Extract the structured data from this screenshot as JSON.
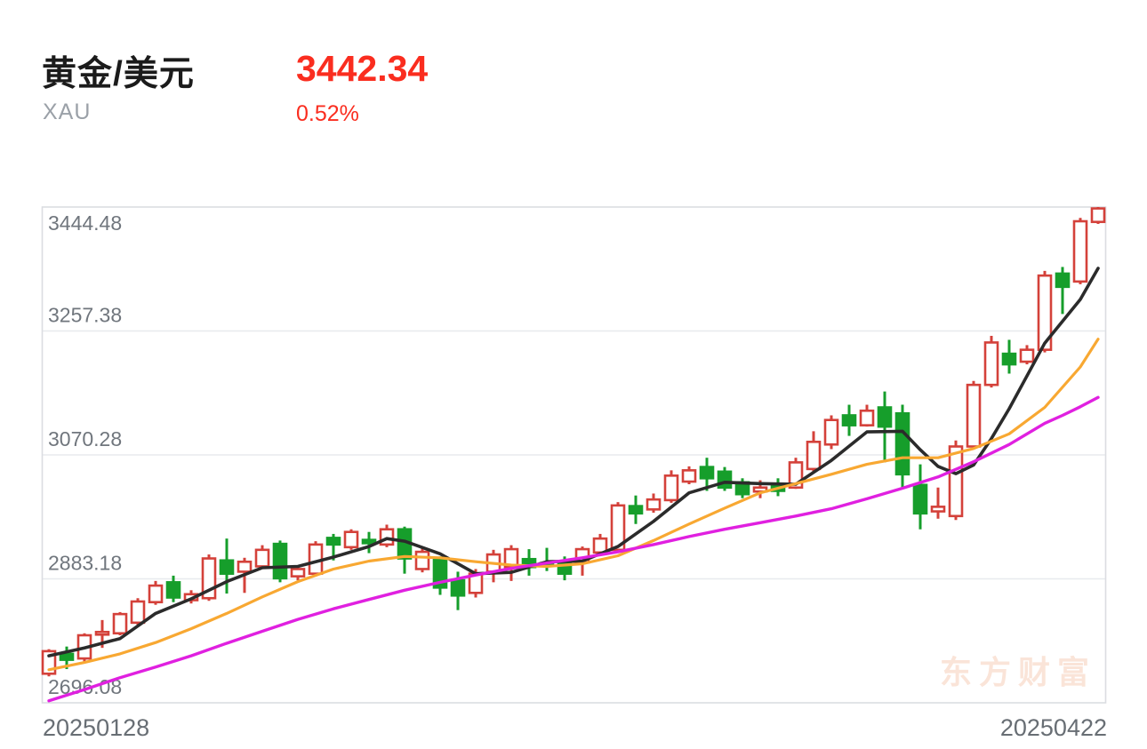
{
  "header": {
    "title": "黄金/美元",
    "symbol": "XAU",
    "price": "3442.34",
    "change_percent": "0.52%"
  },
  "watermark": "东方财富",
  "colors": {
    "accent_red_text": "#fa2d1f",
    "candle_up": "#d4413a",
    "candle_down": "#169e2b",
    "ma_fast": "#2b2b2b",
    "ma_mid": "#f8a832",
    "ma_slow": "#e020e0",
    "grid": "#e8eaee",
    "border": "#dbdde1",
    "y_label": "#70767d",
    "x_label": "#686e74",
    "watermark": "#fae4d8",
    "title_text": "#1b1b1b",
    "symbol_text": "#9ba1a8"
  },
  "chart_data": {
    "type": "candlestick",
    "title": "黄金/美元 XAU daily candlestick chart",
    "grid": true,
    "legend_position": "none",
    "y_axis": {
      "labels": [
        "3444.48",
        "3257.38",
        "3070.28",
        "2883.18",
        "2696.08"
      ],
      "values": [
        3444.48,
        3257.38,
        3070.28,
        2883.18,
        2696.08
      ],
      "max": 3444.48,
      "min": 2696.08
    },
    "x_axis": {
      "start_label": "20250128",
      "end_label": "20250422"
    },
    "candles_format": [
      "open",
      "high",
      "low",
      "close"
    ],
    "candles": [
      [
        2740,
        2777,
        2736,
        2774
      ],
      [
        2770,
        2781,
        2747,
        2761
      ],
      [
        2763,
        2801,
        2757,
        2798
      ],
      [
        2799,
        2821,
        2779,
        2803
      ],
      [
        2801,
        2833,
        2798,
        2830
      ],
      [
        2817,
        2854,
        2814,
        2849
      ],
      [
        2848,
        2880,
        2844,
        2873
      ],
      [
        2878,
        2888,
        2848,
        2855
      ],
      [
        2851,
        2866,
        2846,
        2860
      ],
      [
        2854,
        2920,
        2850,
        2914
      ],
      [
        2911,
        2944,
        2861,
        2891
      ],
      [
        2894,
        2915,
        2862,
        2909
      ],
      [
        2902,
        2934,
        2898,
        2927
      ],
      [
        2936,
        2941,
        2878,
        2884
      ],
      [
        2887,
        2903,
        2881,
        2898
      ],
      [
        2891,
        2940,
        2887,
        2935
      ],
      [
        2945,
        2951,
        2911,
        2935
      ],
      [
        2931,
        2958,
        2927,
        2954
      ],
      [
        2942,
        2954,
        2922,
        2937
      ],
      [
        2935,
        2965,
        2931,
        2958
      ],
      [
        2958,
        2962,
        2891,
        2914
      ],
      [
        2898,
        2929,
        2893,
        2924
      ],
      [
        2913,
        2917,
        2859,
        2870
      ],
      [
        2881,
        2894,
        2836,
        2858
      ],
      [
        2862,
        2898,
        2855,
        2891
      ],
      [
        2894,
        2927,
        2878,
        2920
      ],
      [
        2901,
        2934,
        2880,
        2928
      ],
      [
        2913,
        2928,
        2888,
        2901
      ],
      [
        2907,
        2930,
        2895,
        2903
      ],
      [
        2908,
        2917,
        2881,
        2891
      ],
      [
        2908,
        2932,
        2888,
        2928
      ],
      [
        2923,
        2951,
        2919,
        2944
      ],
      [
        2927,
        2999,
        2923,
        2994
      ],
      [
        2993,
        3009,
        2966,
        2982
      ],
      [
        2988,
        3012,
        2983,
        3003
      ],
      [
        3002,
        3047,
        2998,
        3039
      ],
      [
        3030,
        3053,
        3026,
        3047
      ],
      [
        3052,
        3066,
        3016,
        3035
      ],
      [
        3045,
        3052,
        3016,
        3021
      ],
      [
        3029,
        3035,
        3005,
        3011
      ],
      [
        3015,
        3032,
        3005,
        3021
      ],
      [
        3025,
        3035,
        3008,
        3016
      ],
      [
        3021,
        3066,
        3019,
        3059
      ],
      [
        3049,
        3106,
        3045,
        3090
      ],
      [
        3086,
        3130,
        3079,
        3123
      ],
      [
        3130,
        3146,
        3099,
        3115
      ],
      [
        3115,
        3146,
        3113,
        3137
      ],
      [
        3142,
        3166,
        3059,
        3113
      ],
      [
        3133,
        3146,
        3019,
        3041
      ],
      [
        3025,
        3056,
        2958,
        2982
      ],
      [
        2985,
        3021,
        2974,
        2992
      ],
      [
        2978,
        3092,
        2972,
        3083
      ],
      [
        3083,
        3182,
        3079,
        3176
      ],
      [
        3176,
        3250,
        3172,
        3240
      ],
      [
        3223,
        3244,
        3193,
        3207
      ],
      [
        3211,
        3236,
        3207,
        3229
      ],
      [
        3229,
        3348,
        3225,
        3341
      ],
      [
        3344,
        3354,
        3283,
        3324
      ],
      [
        3332,
        3428,
        3328,
        3423
      ],
      [
        3422,
        3444.48,
        3419,
        3442.34
      ]
    ],
    "moving_averages": [
      {
        "name": "ma-fast-black",
        "color": "#2b2b2b",
        "stroke_width": 3.6,
        "points": [
          [
            0,
            2767
          ],
          [
            2,
            2779
          ],
          [
            4,
            2793
          ],
          [
            6,
            2831
          ],
          [
            8,
            2853
          ],
          [
            10,
            2879
          ],
          [
            12,
            2900
          ],
          [
            14,
            2902
          ],
          [
            16,
            2916
          ],
          [
            18,
            2932
          ],
          [
            19,
            2944
          ],
          [
            20,
            2940
          ],
          [
            22,
            2921
          ],
          [
            24,
            2891
          ],
          [
            26,
            2893
          ],
          [
            28,
            2909
          ],
          [
            30,
            2910
          ],
          [
            32,
            2932
          ],
          [
            34,
            2970
          ],
          [
            36,
            3013
          ],
          [
            38,
            3029
          ],
          [
            40,
            3027
          ],
          [
            42,
            3026
          ],
          [
            44,
            3062
          ],
          [
            46,
            3105
          ],
          [
            48,
            3106
          ],
          [
            49,
            3078
          ],
          [
            50,
            3053
          ],
          [
            51,
            3042
          ],
          [
            52,
            3055
          ],
          [
            53,
            3095
          ],
          [
            54,
            3140
          ],
          [
            56,
            3239
          ],
          [
            58,
            3305
          ],
          [
            59,
            3352
          ]
        ]
      },
      {
        "name": "ma-mid-orange",
        "color": "#f8a832",
        "stroke_width": 3.2,
        "points": [
          [
            0,
            2746
          ],
          [
            2,
            2757
          ],
          [
            4,
            2770
          ],
          [
            6,
            2787
          ],
          [
            8,
            2808
          ],
          [
            10,
            2831
          ],
          [
            12,
            2856
          ],
          [
            14,
            2879
          ],
          [
            16,
            2898
          ],
          [
            18,
            2910
          ],
          [
            20,
            2917
          ],
          [
            22,
            2915
          ],
          [
            24,
            2909
          ],
          [
            26,
            2904
          ],
          [
            28,
            2902
          ],
          [
            30,
            2906
          ],
          [
            32,
            2918
          ],
          [
            34,
            2941
          ],
          [
            36,
            2966
          ],
          [
            38,
            2990
          ],
          [
            40,
            3013
          ],
          [
            42,
            3027
          ],
          [
            44,
            3041
          ],
          [
            46,
            3056
          ],
          [
            48,
            3066
          ],
          [
            50,
            3066
          ],
          [
            52,
            3080
          ],
          [
            54,
            3102
          ],
          [
            56,
            3142
          ],
          [
            58,
            3203
          ],
          [
            59,
            3245
          ]
        ]
      },
      {
        "name": "ma-slow-magenta",
        "color": "#e020e0",
        "stroke_width": 3.4,
        "points": [
          [
            0,
            2699
          ],
          [
            2,
            2716
          ],
          [
            4,
            2734
          ],
          [
            6,
            2750
          ],
          [
            8,
            2767
          ],
          [
            10,
            2786
          ],
          [
            12,
            2804
          ],
          [
            14,
            2822
          ],
          [
            16,
            2838
          ],
          [
            18,
            2852
          ],
          [
            20,
            2866
          ],
          [
            22,
            2878
          ],
          [
            24,
            2889
          ],
          [
            26,
            2899
          ],
          [
            28,
            2907
          ],
          [
            30,
            2915
          ],
          [
            32,
            2924
          ],
          [
            34,
            2935
          ],
          [
            36,
            2947
          ],
          [
            38,
            2958
          ],
          [
            40,
            2968
          ],
          [
            42,
            2978
          ],
          [
            44,
            2989
          ],
          [
            46,
            3004
          ],
          [
            48,
            3020
          ],
          [
            50,
            3037
          ],
          [
            52,
            3060
          ],
          [
            54,
            3086
          ],
          [
            56,
            3118
          ],
          [
            57,
            3130
          ],
          [
            58,
            3143
          ],
          [
            59,
            3157
          ]
        ]
      }
    ]
  }
}
